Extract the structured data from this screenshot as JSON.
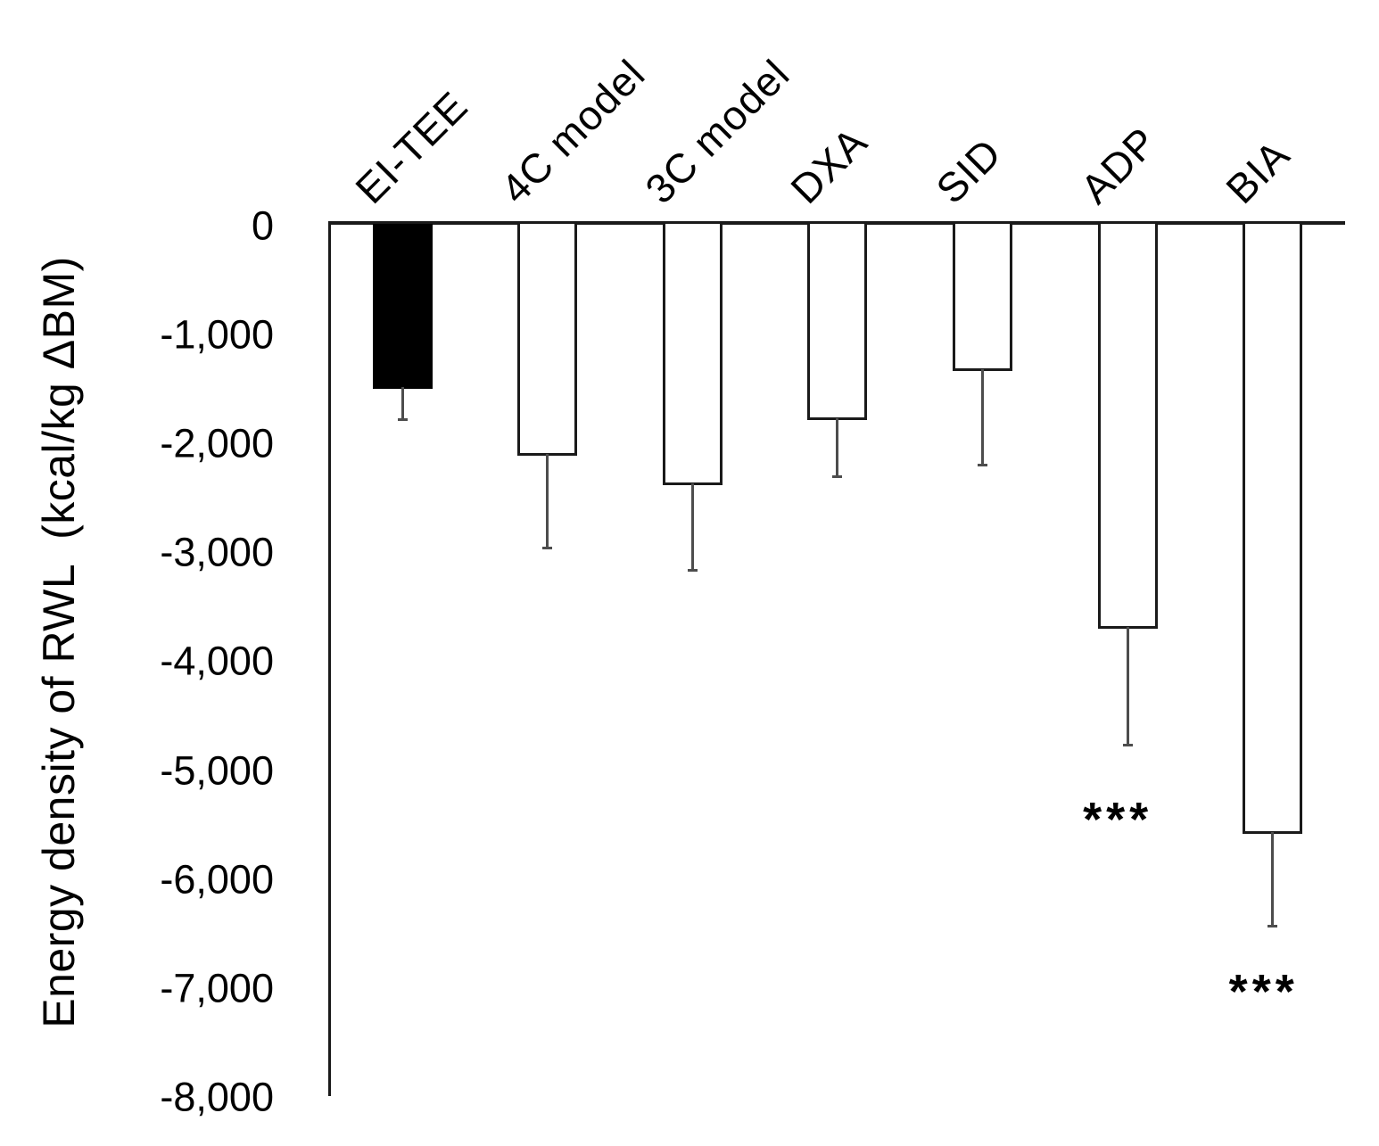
{
  "figure": {
    "background": "#ffffff"
  },
  "chart_data": {
    "type": "bar",
    "title": "",
    "xlabel": "",
    "ylabel": "Energy density of RWL  (kcal/kg ΔBM)",
    "ylim": [
      0,
      -8000
    ],
    "grid": false,
    "legend": "none",
    "bar_direction": "down-from-zero-line",
    "categories": [
      "EI-TEE",
      "4C model",
      "3C model",
      "DXA",
      "SID",
      "ADP",
      "BIA"
    ],
    "series": [
      {
        "name": "Energy density of RWL (kcal/kg ΔBM)",
        "values": [
          -1510,
          -2120,
          -2390,
          -1790,
          -1340,
          -3710,
          -5590
        ],
        "error_bar_tips": [
          -1800,
          -2980,
          -3190,
          -2330,
          -2220,
          -4790,
          -6450
        ]
      }
    ],
    "bar_fill": [
      "#000000",
      "#ffffff",
      "#ffffff",
      "#ffffff",
      "#ffffff",
      "#ffffff",
      "#ffffff"
    ],
    "yticks": [
      {
        "value": 0,
        "label": "0"
      },
      {
        "value": -1000,
        "label": "-1,000"
      },
      {
        "value": -2000,
        "label": "-2,000"
      },
      {
        "value": -3000,
        "label": "-3,000"
      },
      {
        "value": -4000,
        "label": "-4,000"
      },
      {
        "value": -5000,
        "label": "-5,000"
      },
      {
        "value": -6000,
        "label": "-6,000"
      },
      {
        "value": -7000,
        "label": "-7,000"
      },
      {
        "value": -8000,
        "label": "-8,000"
      }
    ],
    "annotations": [
      {
        "category": "ADP",
        "text": "***",
        "value": -5400,
        "x_offset": -11
      },
      {
        "category": "BIA",
        "text": "***",
        "value": -6980,
        "x_offset": -10
      }
    ],
    "colors": {
      "text": "#000000",
      "axis_line": "#1a1a1a",
      "bar_border": "#1a1a1a",
      "error_bar": "#4d4d4d",
      "filled_bar": "#000000",
      "open_bar": "#ffffff"
    }
  }
}
